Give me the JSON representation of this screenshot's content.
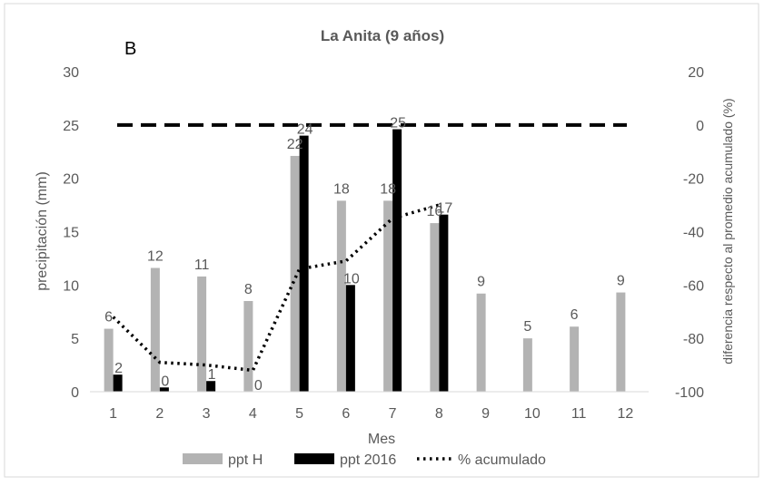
{
  "chart_data": {
    "type": "bar",
    "panel_letter": "B",
    "title": "La Anita (9 años)",
    "xlabel": "Mes",
    "ylabel": "precipitación (mm)",
    "y2label": "diferencia  respecto al promedio acumulado  (%)",
    "categories": [
      "1",
      "2",
      "3",
      "4",
      "5",
      "6",
      "7",
      "8",
      "9",
      "10",
      "11",
      "12"
    ],
    "ylim": [
      0,
      30
    ],
    "yticks": [
      "0",
      "5",
      "10",
      "15",
      "20",
      "25",
      "30"
    ],
    "y2lim": [
      -100,
      20
    ],
    "y2ticks": [
      "-100",
      "-80",
      "-60",
      "-40",
      "-20",
      "0",
      "20"
    ],
    "series": [
      {
        "name": "ppt H",
        "type": "bar",
        "color": "#b3b3b3",
        "values": [
          5.9,
          11.6,
          10.8,
          8.5,
          22.1,
          17.9,
          17.9,
          15.8,
          9.2,
          5.0,
          6.1,
          9.3
        ],
        "labels": [
          "6",
          "12",
          "11",
          "8",
          "22",
          "18",
          "18",
          "16",
          "9",
          "5",
          "6",
          "9"
        ]
      },
      {
        "name": "ppt 2016",
        "type": "bar",
        "color": "#000000",
        "values": [
          1.6,
          0.4,
          1.0,
          0.0,
          24.0,
          10.0,
          24.6,
          16.6,
          null,
          null,
          null,
          null
        ],
        "labels": [
          "2",
          "0",
          "1",
          "0",
          "24",
          "10",
          "25",
          "17",
          "",
          "",
          "",
          ""
        ]
      },
      {
        "name": "% acumulado",
        "type": "line",
        "axis": "y2",
        "color": "#000000",
        "values": [
          -72,
          -89,
          -90,
          -92,
          -54,
          -51,
          -35,
          -30,
          null,
          null,
          null,
          null
        ]
      }
    ],
    "reference_line": {
      "axis": "y2",
      "value": 0,
      "style": "dashed"
    },
    "grid": false,
    "legend_position": "bottom"
  }
}
